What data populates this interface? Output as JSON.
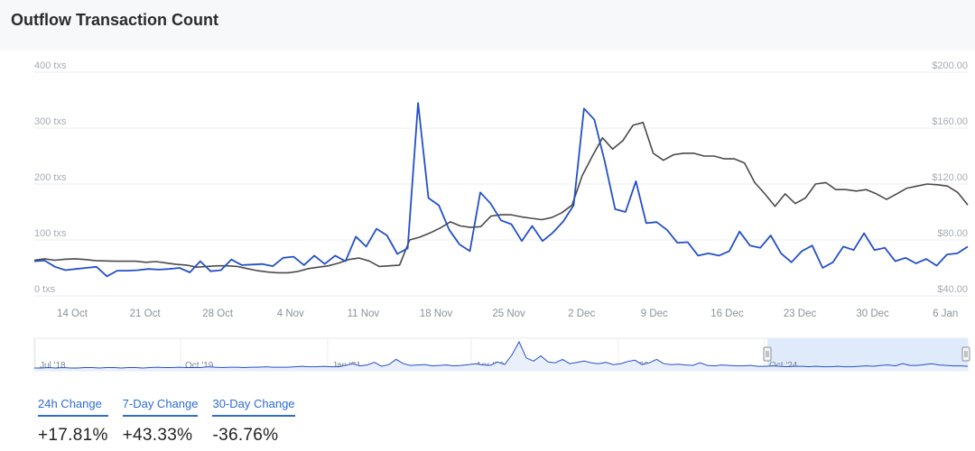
{
  "page": {
    "title": "Outflow Transaction Count"
  },
  "stats": [
    {
      "label": "24h Change",
      "value": "+17.81%"
    },
    {
      "label": "7-Day Change",
      "value": "+43.33%"
    },
    {
      "label": "30-Day Change",
      "value": "-36.76%"
    }
  ],
  "colors": {
    "tx_line": "#2450c8",
    "price_line": "#4a4a4a",
    "navigator_selection": "#dfeafb"
  },
  "chart_data": {
    "type": "line",
    "title": "Outflow Transaction Count",
    "xlabel": "",
    "ylabel": "",
    "x_ticks": [
      "14 Oct",
      "21 Oct",
      "28 Oct",
      "4 Nov",
      "11 Nov",
      "18 Nov",
      "25 Nov",
      "2 Dec",
      "9 Dec",
      "16 Dec",
      "23 Dec",
      "30 Dec",
      "6 Jan"
    ],
    "y_left_ticks": [
      "0 txs",
      "100 txs",
      "200 txs",
      "300 txs",
      "400 txs"
    ],
    "y_left_range": [
      0,
      400
    ],
    "y_right_ticks": [
      "$40.00",
      "$80.00",
      "$120.00",
      "$160.00",
      "$200.00"
    ],
    "y_right_range": [
      40,
      200
    ],
    "grid": true,
    "series": [
      {
        "axis": "left",
        "values": [
          62,
          63,
          52,
          46,
          48,
          50,
          52,
          35,
          45,
          45,
          46,
          48,
          47,
          48,
          50,
          42,
          62,
          44,
          46,
          65,
          55,
          56,
          57,
          53,
          68,
          70,
          55,
          72,
          57,
          72,
          62,
          106,
          88,
          120,
          108,
          75,
          85,
          345,
          175,
          162,
          118,
          92,
          80,
          185,
          165,
          135,
          128,
          98,
          125,
          98,
          113,
          133,
          162,
          335,
          315,
          240,
          155,
          150,
          205,
          130,
          132,
          118,
          95,
          96,
          72,
          76,
          72,
          80,
          115,
          90,
          86,
          108,
          76,
          60,
          80,
          90,
          50,
          60,
          88,
          82,
          112,
          82,
          86,
          62,
          68,
          58,
          66,
          54,
          74,
          76,
          88
        ]
      },
      {
        "axis": "right",
        "values": [
          65.5,
          66.5,
          65.5,
          66.2,
          66.5,
          66,
          65.2,
          65,
          64.8,
          64.8,
          64.8,
          64,
          64.5,
          63.5,
          62.5,
          62,
          60.5,
          61,
          61.5,
          61.5,
          61,
          59.5,
          58,
          57,
          56.5,
          56.5,
          57.5,
          59.5,
          60.5,
          61.5,
          63.5,
          66,
          67,
          65,
          61,
          61.5,
          62,
          80,
          82,
          85,
          88.5,
          93,
          90,
          89,
          89.5,
          97,
          98,
          98,
          96.5,
          95.5,
          94.5,
          96,
          99.5,
          105,
          126,
          140,
          153,
          145,
          151,
          162,
          164,
          142,
          137,
          141,
          142,
          142,
          140,
          140,
          138,
          138,
          135,
          121,
          113,
          104,
          113,
          106,
          110,
          120,
          121,
          116,
          116,
          115,
          116,
          113,
          109,
          113,
          117,
          118.5,
          120,
          119.5,
          118.5,
          114,
          105
        ]
      }
    ],
    "navigator": {
      "labels": [
        "Jul '18",
        "Oct '19",
        "Jan '21",
        "Apr '22",
        "Jul '23",
        "Oct '24"
      ],
      "values": [
        2,
        2,
        3,
        2,
        3,
        2,
        2,
        3,
        3,
        2,
        3,
        3,
        2,
        3,
        3,
        2,
        3,
        4,
        3,
        3,
        4,
        3,
        3,
        3,
        5,
        4,
        3,
        4,
        4,
        3,
        4,
        4,
        5,
        4,
        4,
        4,
        5,
        6,
        5,
        5,
        6,
        5,
        5,
        8,
        12,
        7,
        9,
        15,
        6,
        10,
        22,
        12,
        8,
        9,
        10,
        7,
        8,
        9,
        7,
        8,
        10,
        12,
        9,
        8,
        16,
        10,
        32,
        62,
        25,
        18,
        30,
        16,
        14,
        22,
        12,
        15,
        18,
        14,
        12,
        15,
        10,
        12,
        17,
        20,
        10,
        14,
        22,
        12,
        10,
        11,
        9,
        8,
        14,
        8,
        7,
        9,
        8,
        7,
        7,
        8,
        6,
        6,
        7,
        6,
        5,
        6,
        6,
        5,
        6,
        5,
        5,
        6,
        5,
        5,
        6,
        7,
        6,
        8,
        9,
        7,
        12,
        8,
        8,
        10,
        12,
        9,
        8,
        7,
        7,
        6
      ],
      "selection": "Oct '24 – Jan"
    }
  }
}
